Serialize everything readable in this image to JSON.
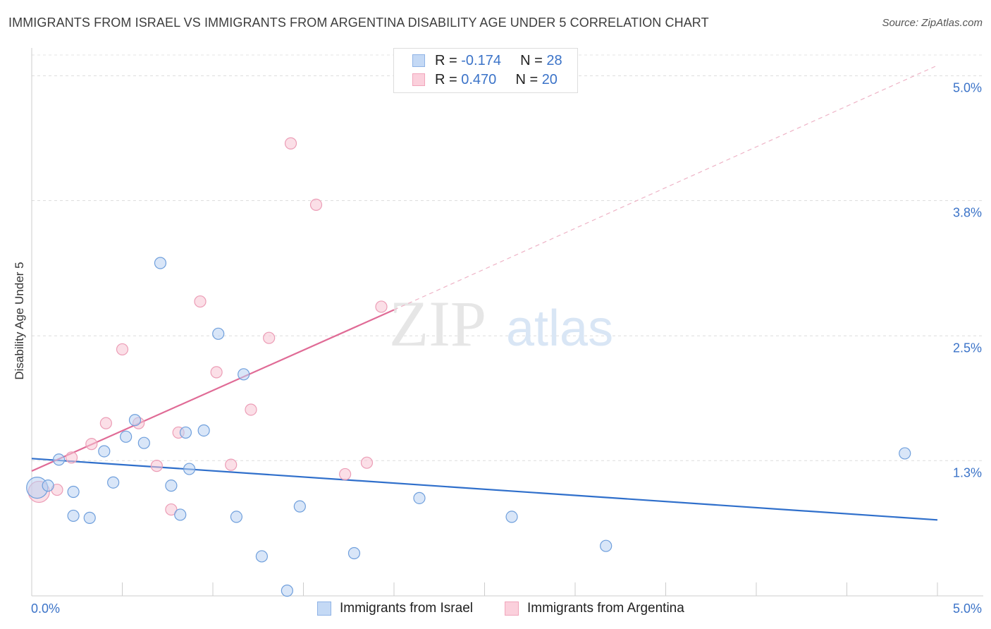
{
  "title": "IMMIGRANTS FROM ISRAEL VS IMMIGRANTS FROM ARGENTINA DISABILITY AGE UNDER 5 CORRELATION CHART",
  "source": "Source: ZipAtlas.com",
  "watermark": {
    "zip": "ZIP",
    "atlas": "atlas"
  },
  "legend": {
    "israel": {
      "r_label": "R = ",
      "r_value": "-0.174",
      "n_label": "N = ",
      "n_value": "28"
    },
    "argentina": {
      "r_label": "R = ",
      "r_value": "0.470",
      "n_label": "N = ",
      "n_value": "20"
    }
  },
  "chart_data": {
    "type": "scatter",
    "title": "IMMIGRANTS FROM ISRAEL VS IMMIGRANTS FROM ARGENTINA DISABILITY AGE UNDER 5 CORRELATION CHART",
    "xlabel": "",
    "ylabel": "Disability Age Under 5",
    "xlim": [
      0,
      5.0
    ],
    "ylim": [
      0,
      5.2
    ],
    "x_tick_labels": [
      "0.0%",
      "5.0%"
    ],
    "y_ticks": [
      1.3,
      2.5,
      3.8,
      5.0
    ],
    "y_tick_labels": [
      "1.3%",
      "2.5%",
      "3.8%",
      "5.0%"
    ],
    "legend_position": "top-center",
    "colors": {
      "israel": "#a9c8f0",
      "israel_line": "#2f6fcb",
      "argentina": "#f5b9ca",
      "argentina_line": "#e06b96",
      "tick_text": "#3b73c8"
    },
    "series": [
      {
        "name": "Immigrants from Israel",
        "r": -0.174,
        "n": 28,
        "trend": {
          "x": [
            0.0,
            5.0
          ],
          "y": [
            1.32,
            0.73
          ]
        },
        "points": [
          {
            "x": 0.03,
            "y": 1.04,
            "big": true
          },
          {
            "x": 0.09,
            "y": 1.06
          },
          {
            "x": 0.15,
            "y": 1.31
          },
          {
            "x": 0.23,
            "y": 1.0
          },
          {
            "x": 0.23,
            "y": 0.77
          },
          {
            "x": 0.32,
            "y": 0.75
          },
          {
            "x": 0.4,
            "y": 1.39
          },
          {
            "x": 0.45,
            "y": 1.09
          },
          {
            "x": 0.52,
            "y": 1.53
          },
          {
            "x": 0.57,
            "y": 1.69
          },
          {
            "x": 0.62,
            "y": 1.47
          },
          {
            "x": 0.71,
            "y": 3.2
          },
          {
            "x": 0.77,
            "y": 1.06
          },
          {
            "x": 0.82,
            "y": 0.78
          },
          {
            "x": 0.87,
            "y": 1.22
          },
          {
            "x": 0.95,
            "y": 1.59
          },
          {
            "x": 1.03,
            "y": 2.52
          },
          {
            "x": 1.13,
            "y": 0.76
          },
          {
            "x": 1.17,
            "y": 2.13
          },
          {
            "x": 1.27,
            "y": 0.38
          },
          {
            "x": 1.41,
            "y": 0.05
          },
          {
            "x": 1.48,
            "y": 0.86
          },
          {
            "x": 1.78,
            "y": 0.41
          },
          {
            "x": 2.14,
            "y": 0.94
          },
          {
            "x": 2.65,
            "y": 0.76
          },
          {
            "x": 3.17,
            "y": 0.48
          },
          {
            "x": 4.82,
            "y": 1.37
          },
          {
            "x": 0.85,
            "y": 1.57
          }
        ]
      },
      {
        "name": "Immigrants from Argentina",
        "r": 0.47,
        "n": 20,
        "trend": {
          "x": [
            0.0,
            2.0
          ],
          "y": [
            1.2,
            2.75
          ]
        },
        "trend_extension": {
          "x": [
            2.0,
            5.0
          ],
          "y": [
            2.75,
            5.1
          ]
        },
        "points": [
          {
            "x": 0.04,
            "y": 1.0,
            "big": true
          },
          {
            "x": 0.14,
            "y": 1.02
          },
          {
            "x": 0.22,
            "y": 1.33
          },
          {
            "x": 0.33,
            "y": 1.46
          },
          {
            "x": 0.41,
            "y": 1.66
          },
          {
            "x": 0.5,
            "y": 2.37
          },
          {
            "x": 0.59,
            "y": 1.66
          },
          {
            "x": 0.69,
            "y": 1.25
          },
          {
            "x": 0.77,
            "y": 0.83
          },
          {
            "x": 0.81,
            "y": 1.57
          },
          {
            "x": 0.93,
            "y": 2.83
          },
          {
            "x": 1.02,
            "y": 2.15
          },
          {
            "x": 1.1,
            "y": 1.26
          },
          {
            "x": 1.21,
            "y": 1.79
          },
          {
            "x": 1.31,
            "y": 2.48
          },
          {
            "x": 1.43,
            "y": 4.35
          },
          {
            "x": 1.57,
            "y": 3.76
          },
          {
            "x": 1.73,
            "y": 1.17
          },
          {
            "x": 1.85,
            "y": 1.28
          },
          {
            "x": 1.93,
            "y": 2.78
          }
        ]
      }
    ]
  },
  "bottom_legend": {
    "israel": "Immigrants from Israel",
    "argentina": "Immigrants from Argentina"
  }
}
